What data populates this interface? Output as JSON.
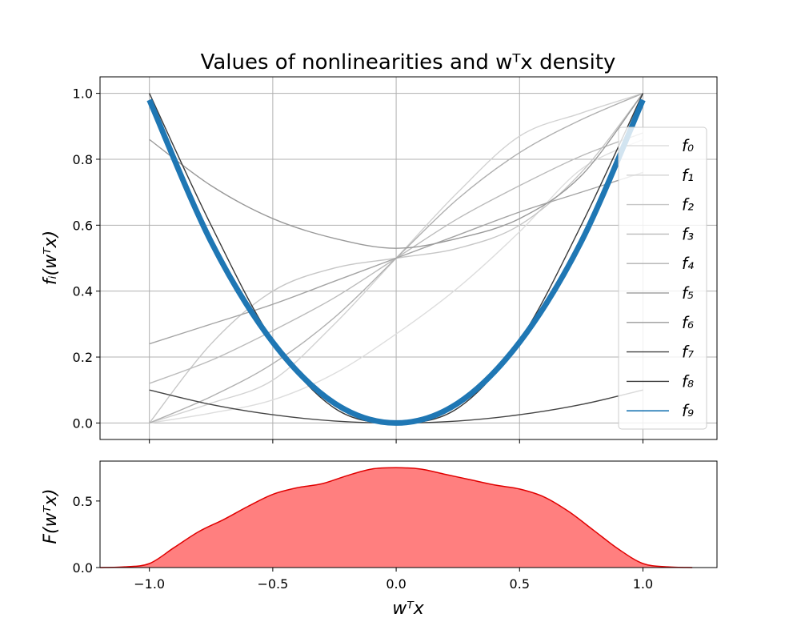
{
  "chart_data": [
    {
      "type": "line",
      "title": "Values of nonlinearities and wᵀx density",
      "ylabel": "fᵢ(wᵀx)",
      "xlabel": "",
      "xlim": [
        -1.2,
        1.3
      ],
      "ylim": [
        -0.05,
        1.05
      ],
      "x_ticks": [
        -1.0,
        -0.5,
        0.0,
        0.5,
        1.0
      ],
      "y_ticks": [
        0.0,
        0.2,
        0.4,
        0.6,
        0.8,
        1.0
      ],
      "y_tick_labels": [
        "0.0",
        "0.2",
        "0.4",
        "0.6",
        "0.8",
        "1.0"
      ],
      "grid": true,
      "legend_placement": "right",
      "x": [
        -1.0,
        -0.75,
        -0.5,
        -0.25,
        0.0,
        0.25,
        0.5,
        0.75,
        1.0
      ],
      "series": [
        {
          "name": "f₀",
          "color": "#dddddd",
          "width": 1.4,
          "values": [
            0.0,
            0.03,
            0.07,
            0.15,
            0.27,
            0.41,
            0.58,
            0.77,
            0.86
          ]
        },
        {
          "name": "f₁",
          "color": "#d2d2d2",
          "width": 1.4,
          "values": [
            0.0,
            0.06,
            0.13,
            0.3,
            0.5,
            0.7,
            0.87,
            0.94,
            1.0
          ]
        },
        {
          "name": "f₂",
          "color": "#c6c6c6",
          "width": 1.4,
          "values": [
            0.0,
            0.24,
            0.4,
            0.47,
            0.5,
            0.53,
            0.6,
            0.76,
            1.0
          ]
        },
        {
          "name": "f₃",
          "color": "#bbbbbb",
          "width": 1.4,
          "values": [
            0.12,
            0.19,
            0.28,
            0.38,
            0.5,
            0.62,
            0.72,
            0.81,
            0.88
          ]
        },
        {
          "name": "f₄",
          "color": "#b0b0b0",
          "width": 1.4,
          "values": [
            0.0,
            0.08,
            0.18,
            0.32,
            0.5,
            0.68,
            0.82,
            0.92,
            1.0
          ]
        },
        {
          "name": "f₅",
          "color": "#a4a4a4",
          "width": 1.4,
          "values": [
            0.24,
            0.3,
            0.36,
            0.43,
            0.5,
            0.57,
            0.64,
            0.7,
            0.76
          ]
        },
        {
          "name": "f₆",
          "color": "#999999",
          "width": 1.4,
          "values": [
            0.86,
            0.72,
            0.62,
            0.56,
            0.53,
            0.56,
            0.62,
            0.75,
            1.0
          ]
        },
        {
          "name": "f₇",
          "color": "#444444",
          "width": 1.4,
          "values": [
            0.1,
            0.056,
            0.025,
            0.006,
            0.0,
            0.006,
            0.025,
            0.056,
            0.1
          ]
        },
        {
          "name": "f₈",
          "color": "#3a3a3a",
          "width": 1.4,
          "values": [
            1.0,
            0.6,
            0.25,
            0.045,
            0.0,
            0.045,
            0.25,
            0.6,
            1.0
          ]
        },
        {
          "name": "f₉",
          "color": "#1f77b4",
          "width": 7,
          "values": [
            0.98,
            0.55,
            0.245,
            0.06,
            0.0,
            0.06,
            0.245,
            0.55,
            0.98
          ]
        }
      ]
    },
    {
      "type": "area",
      "ylabel": "F(wᵀx)",
      "xlabel": "wᵀx",
      "xlim": [
        -1.2,
        1.3
      ],
      "ylim": [
        0.0,
        0.8
      ],
      "x_ticks": [
        -1.0,
        -0.5,
        0.0,
        0.5,
        1.0
      ],
      "x_tick_labels": [
        "−1.0",
        "−0.5",
        "0.0",
        "0.5",
        "1.0"
      ],
      "y_ticks": [
        0.0,
        0.5
      ],
      "y_tick_labels": [
        "0.0",
        "0.5"
      ],
      "line_color": "#e00000",
      "fill_color": "#ff7f7f",
      "x": [
        -1.2,
        -1.1,
        -1.0,
        -0.9,
        -0.8,
        -0.7,
        -0.6,
        -0.5,
        -0.4,
        -0.3,
        -0.2,
        -0.1,
        0.0,
        0.1,
        0.2,
        0.3,
        0.4,
        0.5,
        0.6,
        0.7,
        0.8,
        0.9,
        1.0,
        1.1,
        1.2
      ],
      "y": [
        0.0,
        0.005,
        0.03,
        0.15,
        0.27,
        0.36,
        0.46,
        0.55,
        0.6,
        0.63,
        0.69,
        0.74,
        0.75,
        0.74,
        0.7,
        0.66,
        0.62,
        0.59,
        0.53,
        0.42,
        0.28,
        0.14,
        0.03,
        0.005,
        0.0
      ]
    }
  ]
}
